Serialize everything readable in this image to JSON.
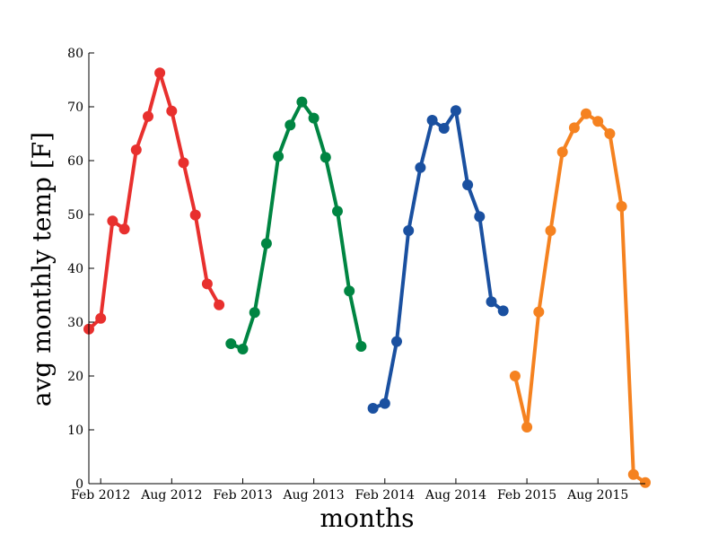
{
  "chart_data": {
    "type": "line",
    "title": "",
    "xlabel": "months",
    "ylabel": "avg monthly temp [F]",
    "grid": false,
    "legend": "none",
    "xlim": [
      "2012-01",
      "2015-12"
    ],
    "ylim": [
      0,
      80
    ],
    "x_ticks": [
      {
        "label": "Feb 2012",
        "month": "2012-02"
      },
      {
        "label": "Aug 2012",
        "month": "2012-08"
      },
      {
        "label": "Feb 2013",
        "month": "2013-02"
      },
      {
        "label": "Aug 2013",
        "month": "2013-08"
      },
      {
        "label": "Feb 2014",
        "month": "2014-02"
      },
      {
        "label": "Aug 2014",
        "month": "2014-08"
      },
      {
        "label": "Feb 2015",
        "month": "2015-02"
      },
      {
        "label": "Aug 2015",
        "month": "2015-08"
      }
    ],
    "y_ticks": [
      0,
      10,
      20,
      30,
      40,
      50,
      60,
      70,
      80
    ],
    "series": [
      {
        "color": "#e8302e",
        "x": [
          "2012-01",
          "2012-02",
          "2012-03",
          "2012-04",
          "2012-05",
          "2012-06",
          "2012-07",
          "2012-08",
          "2012-09",
          "2012-10",
          "2012-11",
          "2012-12"
        ],
        "values": [
          28.7,
          30.7,
          48.8,
          47.3,
          62.0,
          68.2,
          76.3,
          69.2,
          59.6,
          49.9,
          37.1,
          33.2
        ]
      },
      {
        "color": "#008542",
        "x": [
          "2013-01",
          "2013-02",
          "2013-03",
          "2013-04",
          "2013-05",
          "2013-06",
          "2013-07",
          "2013-08",
          "2013-09",
          "2013-10",
          "2013-11",
          "2013-12"
        ],
        "values": [
          26.0,
          25.0,
          31.8,
          44.6,
          60.8,
          66.6,
          70.9,
          67.9,
          60.6,
          50.6,
          35.8,
          25.5
        ]
      },
      {
        "color": "#1a50a0",
        "x": [
          "2014-01",
          "2014-02",
          "2014-03",
          "2014-04",
          "2014-05",
          "2014-06",
          "2014-07",
          "2014-08",
          "2014-09",
          "2014-10",
          "2014-11",
          "2014-12"
        ],
        "values": [
          14.0,
          14.9,
          26.4,
          47.0,
          58.7,
          67.5,
          66.0,
          69.3,
          55.5,
          49.6,
          33.8,
          32.1
        ]
      },
      {
        "color": "#f58220",
        "x": [
          "2015-01",
          "2015-02",
          "2015-03",
          "2015-04",
          "2015-05",
          "2015-06",
          "2015-07",
          "2015-08",
          "2015-09",
          "2015-10",
          "2015-11",
          "2015-12"
        ],
        "values": [
          20.0,
          10.5,
          31.9,
          47.0,
          61.6,
          66.1,
          68.7,
          67.3,
          65.0,
          51.5,
          1.7,
          0.2
        ]
      }
    ]
  }
}
